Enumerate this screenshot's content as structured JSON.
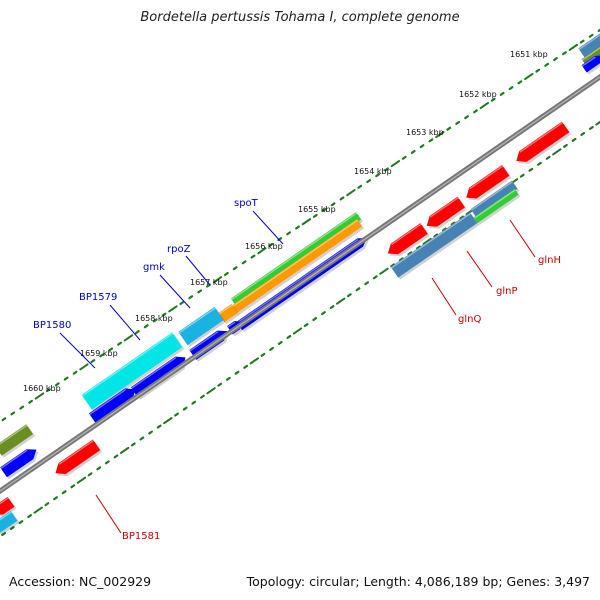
{
  "title": "Bordetella pertussis Tohama I, complete genome",
  "footer": {
    "accession": "Accession: NC_002929",
    "summary": "Topology: circular; Length: 4,086,189 bp; Genes: 3,497"
  },
  "colors": {
    "backbone": "#7a7a7a",
    "tick": "#1f7a1f",
    "label_blue": "#0000cc",
    "label_red": "#cc0000",
    "feature_red": "#ff0000",
    "feature_blue": "#0000ff",
    "feature_steel": "#4682b4",
    "feature_green": "#33cc33",
    "feature_orange": "#ff9900",
    "feature_cyan": "#00e5e5",
    "feature_lightblue": "#1ab2e0",
    "feature_olive": "#6b8e23"
  },
  "scale": {
    "unit": "kbp",
    "labels": [
      "1651 kbp",
      "1652 kbp",
      "1653 kbp",
      "1654 kbp",
      "1655 kbp",
      "1656 kbp",
      "1657 kbp",
      "1658 kbp",
      "1659 kbp",
      "1660 kbp"
    ]
  },
  "labeled_genes": [
    {
      "name": "spoT",
      "strand": "forward"
    },
    {
      "name": "rpoZ",
      "strand": "forward"
    },
    {
      "name": "gmk",
      "strand": "forward"
    },
    {
      "name": "BP1579",
      "strand": "forward"
    },
    {
      "name": "BP1580",
      "strand": "forward"
    },
    {
      "name": "glnH",
      "strand": "reverse"
    },
    {
      "name": "glnP",
      "strand": "reverse"
    },
    {
      "name": "glnQ",
      "strand": "reverse"
    },
    {
      "name": "BP1581",
      "strand": "reverse"
    }
  ]
}
